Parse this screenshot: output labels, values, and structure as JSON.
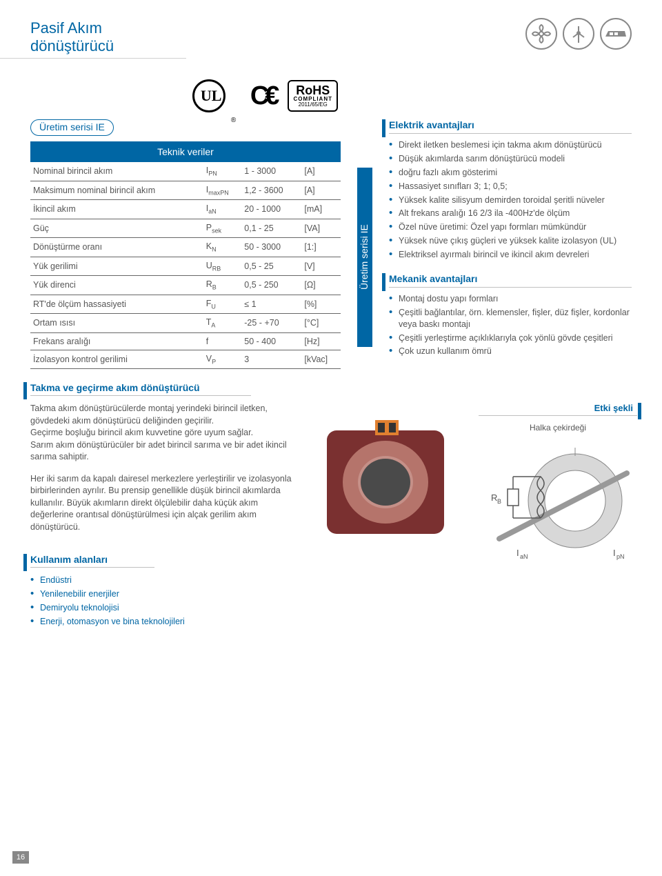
{
  "page_title": "Pasif Akım dönüştürücü",
  "top_icon_names": [
    "fan-icon",
    "windmill-icon",
    "train-icon"
  ],
  "cert": {
    "rohs_big": "RoHS",
    "rohs_mid": "COMPLIANT",
    "rohs_sm": "2011/65/EG"
  },
  "pill_series": "Üretim serisi IE",
  "table_header": "Teknik veriler",
  "vtab_label": "Üretim serisi IE",
  "spec_rows": [
    {
      "name": "Nominal birincil akım",
      "sym": "I",
      "sub": "PN",
      "val": "1 - 3000",
      "unit": "[A]"
    },
    {
      "name": "Maksimum nominal birincil akım",
      "sym": "I",
      "sub": "maxPN",
      "val": "1,2 - 3600",
      "unit": "[A]"
    },
    {
      "name": "İkincil akım",
      "sym": "I",
      "sub": "aN",
      "val": "20 - 1000",
      "unit": "[mA]"
    },
    {
      "name": "Güç",
      "sym": "P",
      "sub": "sek",
      "val": "0,1 - 25",
      "unit": "[VA]"
    },
    {
      "name": "Dönüştürme oranı",
      "sym": "K",
      "sub": "N",
      "val": "50 - 3000",
      "unit": "[1:]"
    },
    {
      "name": "Yük gerilimi",
      "sym": "U",
      "sub": "RB",
      "val": "0,5 - 25",
      "unit": "[V]"
    },
    {
      "name": "Yük direnci",
      "sym": "R",
      "sub": "B",
      "val": "0,5 - 250",
      "unit": "[Ω]"
    },
    {
      "name": "RT'de ölçüm hassasiyeti",
      "sym": "F",
      "sub": "U",
      "val": "≤ 1",
      "unit": "[%]"
    },
    {
      "name": "Ortam ısısı",
      "sym": "T",
      "sub": "A",
      "val": "-25 - +70",
      "unit": "[°C]"
    },
    {
      "name": "Frekans aralığı",
      "sym": "f",
      "sub": "",
      "val": "50 - 400",
      "unit": "[Hz]"
    },
    {
      "name": "İzolasyon kontrol gerilimi",
      "sym": "V",
      "sub": "P",
      "val": "3",
      "unit": "[kVac]"
    }
  ],
  "elec_head": "Elektrik avantajları",
  "elec_bullets": [
    "Direkt iletken beslemesi için takma akım dönüştürücü",
    "Düşük akımlarda sarım dönüştürücü modeli",
    "doğru fazlı akım gösterimi",
    "Hassasiyet sınıfları 3; 1; 0,5;",
    "Yüksek kalite silisyum demirden toroidal şeritli nüveler",
    "Alt frekans aralığı 16 2/3 ila -400Hz'de ölçüm",
    "Özel nüve üretimi: Özel yapı formları mümkündür",
    "Yüksek nüve çıkış güçleri ve yüksek kalite izolasyon (UL)",
    "Elektriksel ayırmalı birincil ve ikincil akım devreleri"
  ],
  "mech_head": "Mekanik avantajları",
  "mech_bullets": [
    "Montaj dostu yapı formları",
    "Çeşitli bağlantılar, örn. klemensler, fişler, düz fişler, kordonlar veya baskı montajı",
    "Çeşitli yerleştirme açıklıklarıyla çok yönlü gövde çeşitleri",
    "Çok uzun kullanım ömrü"
  ],
  "takma_head": "Takma ve geçirme akım dönüştürücü",
  "takma_p1": "Takma akım dönüştürücülerde montaj yerindeki birincil iletken, gövdedeki akım dönüştürücü deliğinden geçirilir.\nGeçirme boşluğu birincil akım kuvvetine göre uyum sağlar.\nSarım akım dönüştürücüler bir adet birincil sarıma ve bir adet ikincil sarıma sahiptir.",
  "takma_p2": "Her iki sarım da kapalı dairesel merkezlere yerleştirilir ve izolasyonla birbirlerinden ayrılır. Bu prensip genellikle düşük birincil akımlarda kullanılır. Büyük akımların direkt ölçülebilir daha küçük akım değerlerine orantısal dönüştürülmesi için alçak gerilim akım dönüştürücü.",
  "etki_head": "Etki şekli",
  "etki_labels": {
    "halka": "Halka çekirdeği",
    "rb": "R",
    "rb_sub": "B",
    "ian": "I",
    "ian_sub": "aN",
    "ipn": "I",
    "ipn_sub": "pN"
  },
  "kullanim_head": "Kullanım alanları",
  "kullanim_bullets": [
    "Endüstri",
    "Yenilenebilir enerjiler",
    "Demiryolu teknolojisi",
    "Enerji, otomasyon ve bina teknolojileri"
  ],
  "page_number": "16",
  "colors": {
    "primary": "#0066a4",
    "text": "#555555",
    "border": "#c0c0c0"
  }
}
